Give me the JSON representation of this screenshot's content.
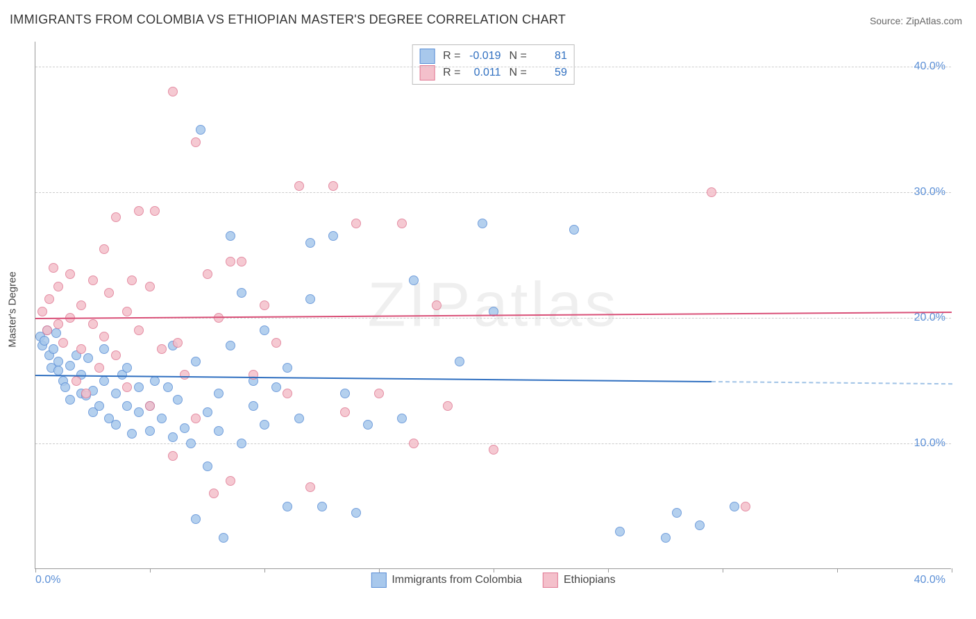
{
  "title": "IMMIGRANTS FROM COLOMBIA VS ETHIOPIAN MASTER'S DEGREE CORRELATION CHART",
  "source": "Source: ZipAtlas.com",
  "watermark": "ZIPatlas",
  "chart": {
    "type": "scatter",
    "background_color": "#ffffff",
    "grid_color": "#cccccc",
    "axis_color": "#999999",
    "ylabel": "Master's Degree",
    "label_fontsize": 15,
    "title_fontsize": 18,
    "tick_fontsize": 16,
    "tick_color": "#5b8fd6",
    "xlim": [
      0,
      40
    ],
    "ylim": [
      0,
      42
    ],
    "xtick_positions": [
      0,
      5,
      10,
      15,
      20,
      25,
      30,
      35,
      40
    ],
    "xtick_labels": {
      "start": "0.0%",
      "end": "40.0%"
    },
    "ytick_positions": [
      10,
      20,
      30,
      40
    ],
    "ytick_labels": [
      "10.0%",
      "20.0%",
      "30.0%",
      "40.0%"
    ],
    "marker_radius": 7,
    "marker_stroke_width": 1.2,
    "marker_fill_opacity": 0.35,
    "series": [
      {
        "name": "Immigrants from Colombia",
        "legend_label": "Immigrants from Colombia",
        "color_fill": "#a8c8ec",
        "color_stroke": "#5b8fd6",
        "r_value": "-0.019",
        "n_value": "81",
        "trend": {
          "x1": 0,
          "y1": 15.5,
          "x2": 29.5,
          "y2": 15.0,
          "color": "#2f6fc0",
          "width": 2,
          "dash_extend_x": 40,
          "dash_color": "#9fc2e6"
        },
        "points": [
          [
            0.2,
            18.5
          ],
          [
            0.3,
            17.8
          ],
          [
            0.4,
            18.2
          ],
          [
            0.5,
            19.0
          ],
          [
            0.6,
            17.0
          ],
          [
            0.7,
            16.0
          ],
          [
            0.8,
            17.5
          ],
          [
            0.9,
            18.8
          ],
          [
            1.0,
            15.8
          ],
          [
            1.0,
            16.5
          ],
          [
            1.2,
            15.0
          ],
          [
            1.3,
            14.5
          ],
          [
            1.5,
            16.2
          ],
          [
            1.5,
            13.5
          ],
          [
            1.8,
            17.0
          ],
          [
            2.0,
            14.0
          ],
          [
            2.0,
            15.5
          ],
          [
            2.2,
            13.8
          ],
          [
            2.3,
            16.8
          ],
          [
            2.5,
            12.5
          ],
          [
            2.5,
            14.2
          ],
          [
            2.8,
            13.0
          ],
          [
            3.0,
            15.0
          ],
          [
            3.0,
            17.5
          ],
          [
            3.2,
            12.0
          ],
          [
            3.5,
            14.0
          ],
          [
            3.5,
            11.5
          ],
          [
            3.8,
            15.5
          ],
          [
            4.0,
            13.0
          ],
          [
            4.0,
            16.0
          ],
          [
            4.2,
            10.8
          ],
          [
            4.5,
            12.5
          ],
          [
            4.5,
            14.5
          ],
          [
            5.0,
            13.0
          ],
          [
            5.0,
            11.0
          ],
          [
            5.2,
            15.0
          ],
          [
            5.5,
            12.0
          ],
          [
            5.8,
            14.5
          ],
          [
            6.0,
            10.5
          ],
          [
            6.0,
            17.8
          ],
          [
            6.2,
            13.5
          ],
          [
            6.5,
            11.2
          ],
          [
            6.8,
            10.0
          ],
          [
            7.0,
            4.0
          ],
          [
            7.0,
            16.5
          ],
          [
            7.2,
            35.0
          ],
          [
            7.5,
            12.5
          ],
          [
            7.5,
            8.2
          ],
          [
            8.0,
            14.0
          ],
          [
            8.0,
            11.0
          ],
          [
            8.2,
            2.5
          ],
          [
            8.5,
            26.5
          ],
          [
            8.5,
            17.8
          ],
          [
            9.0,
            10.0
          ],
          [
            9.0,
            22.0
          ],
          [
            9.5,
            15.0
          ],
          [
            9.5,
            13.0
          ],
          [
            10.0,
            19.0
          ],
          [
            10.0,
            11.5
          ],
          [
            10.5,
            14.5
          ],
          [
            11.0,
            16.0
          ],
          [
            11.0,
            5.0
          ],
          [
            11.5,
            12.0
          ],
          [
            12.0,
            21.5
          ],
          [
            12.0,
            26.0
          ],
          [
            12.5,
            5.0
          ],
          [
            13.0,
            26.5
          ],
          [
            13.5,
            14.0
          ],
          [
            14.0,
            4.5
          ],
          [
            14.5,
            11.5
          ],
          [
            16.0,
            12.0
          ],
          [
            16.5,
            23.0
          ],
          [
            18.5,
            16.5
          ],
          [
            19.5,
            27.5
          ],
          [
            20.0,
            20.5
          ],
          [
            23.5,
            27.0
          ],
          [
            25.5,
            3.0
          ],
          [
            27.5,
            2.5
          ],
          [
            28.0,
            4.5
          ],
          [
            29.0,
            3.5
          ],
          [
            30.5,
            5.0
          ]
        ]
      },
      {
        "name": "Ethiopians",
        "legend_label": "Ethiopians",
        "color_fill": "#f4c0cb",
        "color_stroke": "#e07a94",
        "r_value": "0.011",
        "n_value": "59",
        "trend": {
          "x1": 0,
          "y1": 20.0,
          "x2": 40,
          "y2": 20.5,
          "color": "#d94f77",
          "width": 2
        },
        "points": [
          [
            0.3,
            20.5
          ],
          [
            0.5,
            19.0
          ],
          [
            0.6,
            21.5
          ],
          [
            0.8,
            24.0
          ],
          [
            1.0,
            19.5
          ],
          [
            1.0,
            22.5
          ],
          [
            1.2,
            18.0
          ],
          [
            1.5,
            23.5
          ],
          [
            1.5,
            20.0
          ],
          [
            1.8,
            15.0
          ],
          [
            2.0,
            21.0
          ],
          [
            2.0,
            17.5
          ],
          [
            2.2,
            14.0
          ],
          [
            2.5,
            23.0
          ],
          [
            2.5,
            19.5
          ],
          [
            2.8,
            16.0
          ],
          [
            3.0,
            18.5
          ],
          [
            3.0,
            25.5
          ],
          [
            3.2,
            22.0
          ],
          [
            3.5,
            17.0
          ],
          [
            3.5,
            28.0
          ],
          [
            4.0,
            14.5
          ],
          [
            4.0,
            20.5
          ],
          [
            4.2,
            23.0
          ],
          [
            4.5,
            19.0
          ],
          [
            4.5,
            28.5
          ],
          [
            5.0,
            13.0
          ],
          [
            5.0,
            22.5
          ],
          [
            5.2,
            28.5
          ],
          [
            5.5,
            17.5
          ],
          [
            6.0,
            9.0
          ],
          [
            6.0,
            38.0
          ],
          [
            6.2,
            18.0
          ],
          [
            6.5,
            15.5
          ],
          [
            7.0,
            34.0
          ],
          [
            7.0,
            12.0
          ],
          [
            7.5,
            23.5
          ],
          [
            7.8,
            6.0
          ],
          [
            8.0,
            20.0
          ],
          [
            8.5,
            24.5
          ],
          [
            8.5,
            7.0
          ],
          [
            9.0,
            24.5
          ],
          [
            9.5,
            15.5
          ],
          [
            10.0,
            21.0
          ],
          [
            10.5,
            18.0
          ],
          [
            11.0,
            14.0
          ],
          [
            11.5,
            30.5
          ],
          [
            12.0,
            6.5
          ],
          [
            13.0,
            30.5
          ],
          [
            13.5,
            12.5
          ],
          [
            14.0,
            27.5
          ],
          [
            15.0,
            14.0
          ],
          [
            16.0,
            27.5
          ],
          [
            16.5,
            10.0
          ],
          [
            17.5,
            21.0
          ],
          [
            18.0,
            13.0
          ],
          [
            20.0,
            9.5
          ],
          [
            29.5,
            30.0
          ],
          [
            31.0,
            5.0
          ]
        ]
      }
    ],
    "legend_top": {
      "r_label": "R =",
      "n_label": "N =",
      "value_color": "#2f6fc0"
    },
    "legend_bottom_labels": [
      "Immigrants from Colombia",
      "Ethiopians"
    ]
  }
}
